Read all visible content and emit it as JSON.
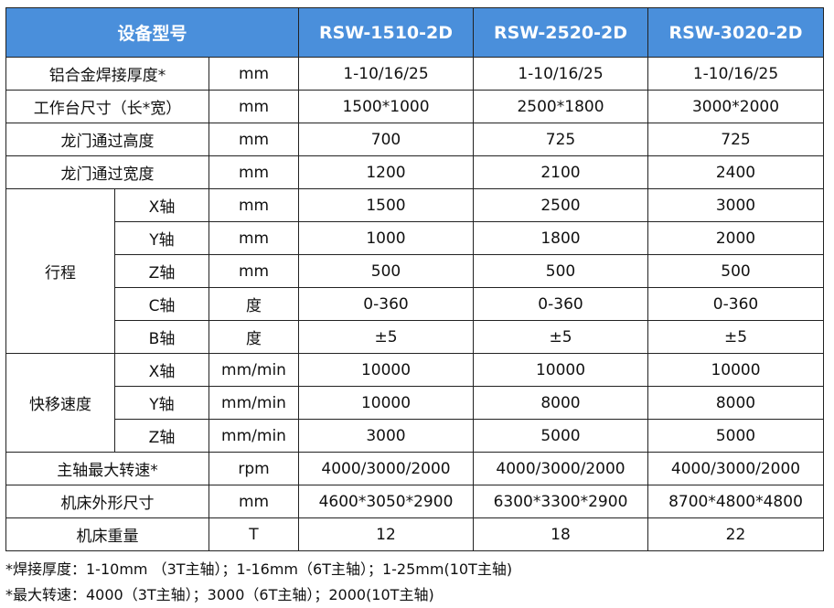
{
  "table": {
    "header": [
      "设备型号",
      "RSW-1510-2D",
      "RSW-2520-2D",
      "RSW-3020-2D"
    ],
    "rows": [
      {
        "label": "铝合金焊接厚度*",
        "unit": "mm",
        "values": [
          "1-10/16/25",
          "1-10/16/25",
          "1-10/16/25"
        ]
      },
      {
        "label": "工作台尺寸（长*宽）",
        "unit": "mm",
        "values": [
          "1500*1000",
          "2500*1800",
          "3000*2000"
        ]
      },
      {
        "label": "龙门通过高度",
        "unit": "mm",
        "values": [
          "700",
          "725",
          "725"
        ]
      },
      {
        "label": "龙门通过宽度",
        "unit": "mm",
        "values": [
          "1200",
          "2100",
          "2400"
        ]
      },
      {
        "group": "行程",
        "rows": [
          {
            "label": "X轴",
            "unit": "mm",
            "values": [
              "1500",
              "2500",
              "3000"
            ]
          },
          {
            "label": "Y轴",
            "unit": "mm",
            "values": [
              "1000",
              "1800",
              "2000"
            ]
          },
          {
            "label": "Z轴",
            "unit": "mm",
            "values": [
              "500",
              "500",
              "500"
            ]
          },
          {
            "label": "C轴",
            "unit": "度",
            "values": [
              "0-360",
              "0-360",
              "0-360"
            ]
          },
          {
            "label": "B轴",
            "unit": "度",
            "values": [
              "±5",
              "±5",
              "±5"
            ]
          }
        ]
      },
      {
        "group": "快移速度",
        "rows": [
          {
            "label": "X轴",
            "unit": "mm/min",
            "values": [
              "10000",
              "10000",
              "10000"
            ]
          },
          {
            "label": "Y轴",
            "unit": "mm/min",
            "values": [
              "10000",
              "8000",
              "8000"
            ]
          },
          {
            "label": "Z轴",
            "unit": "mm/min",
            "values": [
              "3000",
              "5000",
              "5000"
            ]
          }
        ]
      },
      {
        "label": "主轴最大转速*",
        "unit": "rpm",
        "values": [
          "4000/3000/2000",
          "4000/3000/2000",
          "4000/3000/2000"
        ]
      },
      {
        "label": "机床外形尺寸",
        "unit": "mm",
        "values": [
          "4600*3050*2900",
          "6300*3300*2900",
          "8700*4800*4800"
        ]
      },
      {
        "label": "机床重量",
        "unit": "T",
        "values": [
          "12",
          "18",
          "22"
        ]
      }
    ]
  },
  "notes": [
    "*焊接厚度：1-10mm （3T主轴）；1-16mm（6T主轴）；1-25mm(10T主轴)",
    "*最大转速：4000（3T主轴）；3000（6T主轴）；2000(10T主轴)"
  ]
}
